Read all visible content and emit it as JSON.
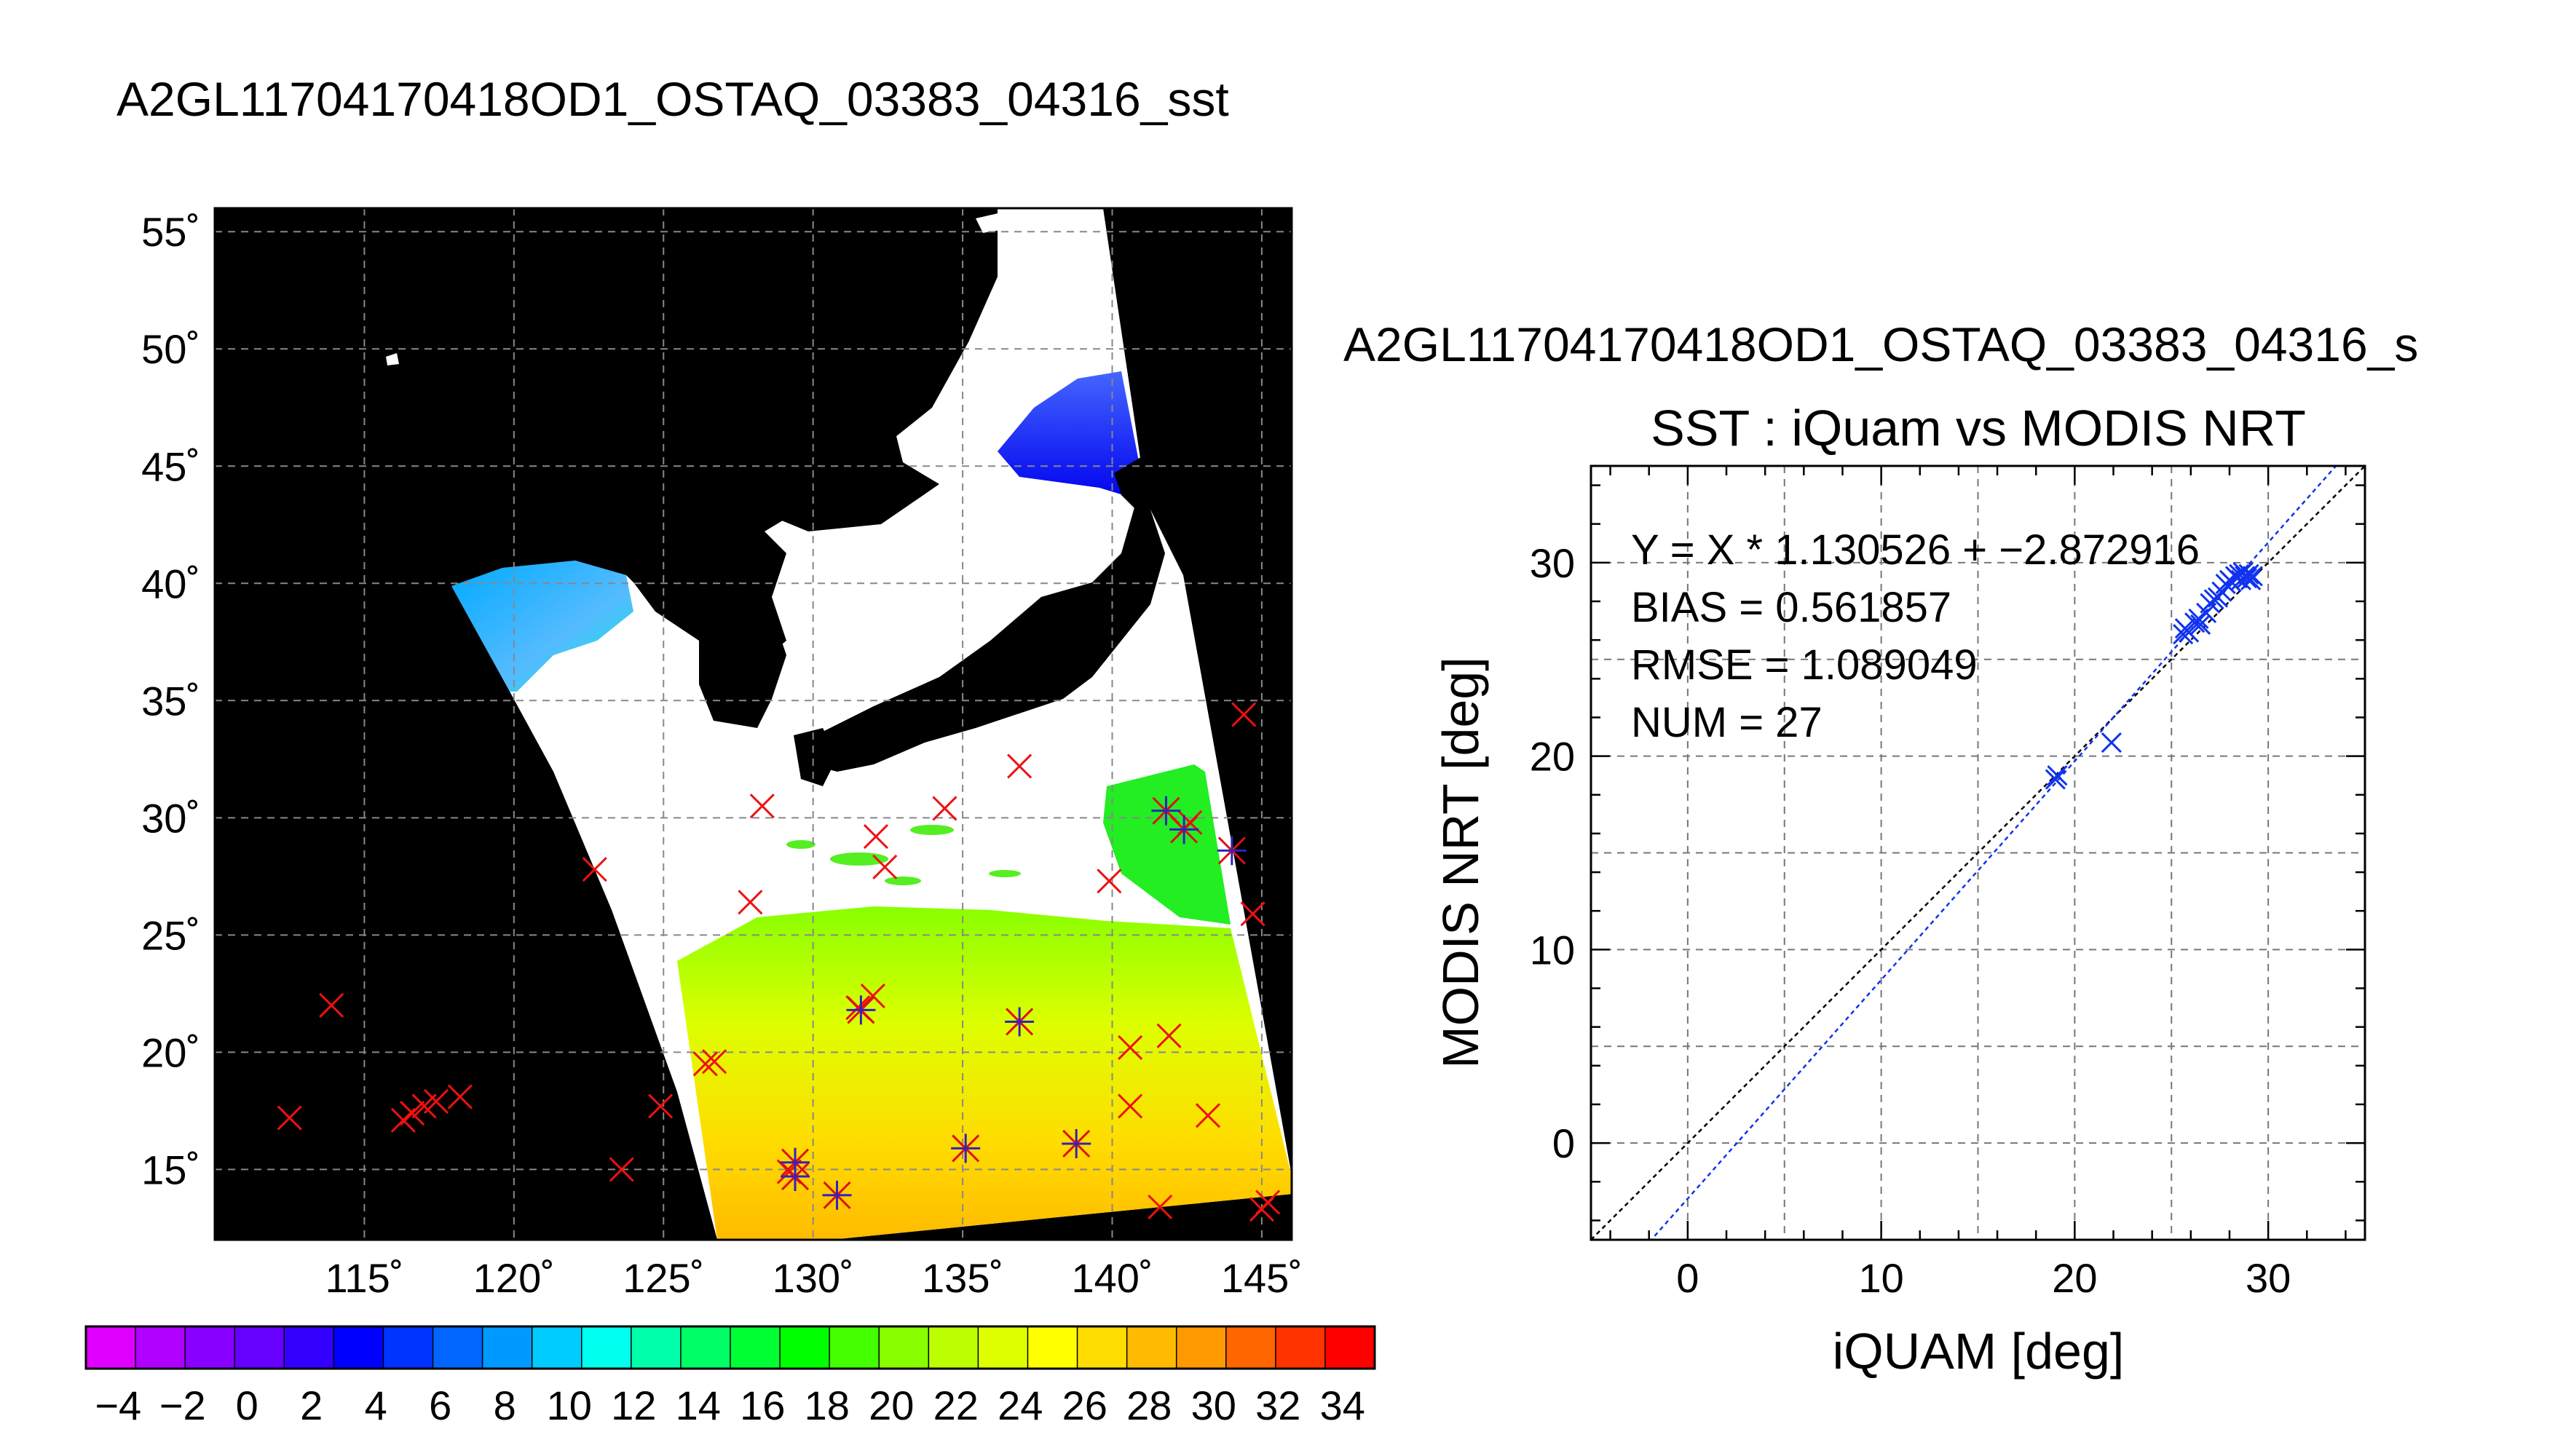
{
  "main_title": "A2GL11704170418OD1_OSTAQ_03383_04316_sst",
  "right_title": "A2GL11704170418OD1_OSTAQ_03383_04316_s",
  "chart_data": [
    {
      "type": "map",
      "lon_range": [
        110,
        146
      ],
      "lat_range": [
        12,
        56
      ],
      "lon_ticks": [
        "115˚",
        "120˚",
        "125˚",
        "130˚",
        "135˚",
        "140˚",
        "145˚"
      ],
      "lat_ticks": [
        "15˚",
        "20˚",
        "25˚",
        "30˚",
        "35˚",
        "40˚",
        "45˚",
        "50˚",
        "55˚"
      ],
      "grid": true,
      "background_color": "#000000",
      "land_color": "#ffffff",
      "colorbar": {
        "ticks": [
          "−4",
          "−2",
          "0",
          "2",
          "4",
          "6",
          "8",
          "10",
          "12",
          "14",
          "16",
          "18",
          "20",
          "22",
          "24",
          "26",
          "28",
          "30",
          "32",
          "34"
        ],
        "range": [
          -5,
          35
        ],
        "colors": [
          "#e000ff",
          "#b000ff",
          "#8800ff",
          "#6600ff",
          "#3300ff",
          "#0000ff",
          "#0033ff",
          "#0066ff",
          "#0099ff",
          "#00ccff",
          "#00ffee",
          "#00ffaa",
          "#00ff66",
          "#00ff33",
          "#00ff00",
          "#44ff00",
          "#88ff00",
          "#bbff00",
          "#ddff00",
          "#ffff00",
          "#ffdd00",
          "#ffbb00",
          "#ff9900",
          "#ff6600",
          "#ff3300",
          "#ff0000"
        ]
      },
      "observations_x": [
        [
          112.5,
          17.2
        ],
        [
          113.9,
          22.0
        ],
        [
          116.3,
          17.1
        ],
        [
          116.6,
          17.4
        ],
        [
          117.0,
          17.7
        ],
        [
          117.4,
          17.9
        ],
        [
          118.2,
          18.1
        ],
        [
          122.7,
          27.8
        ],
        [
          123.6,
          15.0
        ],
        [
          124.9,
          17.7
        ],
        [
          126.4,
          19.5
        ],
        [
          126.7,
          19.6
        ],
        [
          127.9,
          26.4
        ],
        [
          128.3,
          30.5
        ],
        [
          129.2,
          14.9
        ],
        [
          131.5,
          21.9
        ],
        [
          132.0,
          22.4
        ],
        [
          132.1,
          29.2
        ],
        [
          132.4,
          27.9
        ],
        [
          134.4,
          30.4
        ],
        [
          136.9,
          32.2
        ],
        [
          139.9,
          27.3
        ],
        [
          140.6,
          20.2
        ],
        [
          140.6,
          17.7
        ],
        [
          141.6,
          13.4
        ],
        [
          141.9,
          20.7
        ],
        [
          142.6,
          29.8
        ],
        [
          143.2,
          17.3
        ],
        [
          144.4,
          34.4
        ],
        [
          144.7,
          25.9
        ],
        [
          145.0,
          13.3
        ],
        [
          145.2,
          13.6
        ]
      ],
      "observations_star": [
        [
          129.4,
          15.3
        ],
        [
          129.4,
          14.7
        ],
        [
          130.8,
          13.9
        ],
        [
          131.6,
          21.8
        ],
        [
          135.1,
          15.9
        ],
        [
          136.9,
          21.3
        ],
        [
          138.8,
          16.1
        ],
        [
          141.8,
          30.3
        ],
        [
          142.4,
          29.5
        ],
        [
          144.0,
          28.6
        ]
      ]
    },
    {
      "type": "scatter",
      "title": "SST : iQuam vs MODIS NRT",
      "xlabel": "iQUAM [deg]",
      "ylabel": "MODIS NRT [deg]",
      "xlim": [
        -5,
        35
      ],
      "ylim": [
        -5,
        35
      ],
      "xticks": [
        0,
        10,
        20,
        30
      ],
      "yticks": [
        0,
        10,
        20,
        30
      ],
      "grid": true,
      "stats_text": [
        "Y = X * 1.130526 + −2.872916",
        "BIAS = 0.561857",
        "RMSE = 1.089049",
        "NUM = 27"
      ],
      "fit": {
        "slope": 1.130526,
        "intercept": -2.872916
      },
      "points": [
        [
          19.0,
          18.8
        ],
        [
          19.1,
          19.0
        ],
        [
          21.9,
          20.7
        ],
        [
          25.6,
          26.3
        ],
        [
          25.7,
          26.6
        ],
        [
          25.9,
          26.4
        ],
        [
          26.2,
          26.9
        ],
        [
          26.4,
          27.1
        ],
        [
          26.5,
          26.8
        ],
        [
          26.8,
          27.4
        ],
        [
          27.0,
          27.9
        ],
        [
          27.2,
          28.1
        ],
        [
          27.4,
          28.2
        ],
        [
          27.6,
          28.5
        ],
        [
          27.8,
          28.9
        ],
        [
          28.0,
          29.1
        ],
        [
          28.1,
          29.0
        ],
        [
          28.3,
          29.3
        ],
        [
          28.4,
          29.2
        ],
        [
          28.5,
          29.4
        ],
        [
          28.6,
          29.1
        ],
        [
          28.7,
          29.5
        ],
        [
          28.8,
          29.3
        ],
        [
          28.9,
          29.2
        ],
        [
          29.0,
          29.4
        ],
        [
          29.1,
          29.1
        ],
        [
          29.2,
          29.3
        ]
      ]
    }
  ]
}
